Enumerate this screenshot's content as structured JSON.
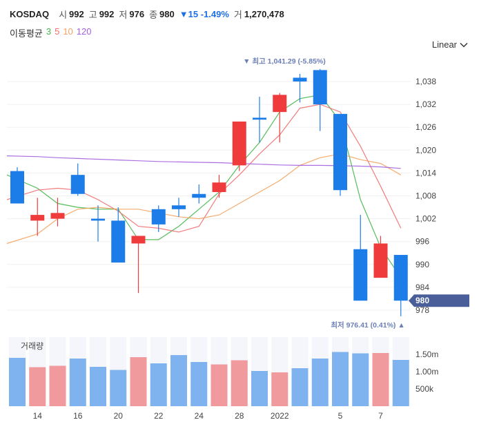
{
  "header": {
    "symbol": "KOSDAQ",
    "open_label": "시",
    "open_value": "992",
    "high_label": "고",
    "high_value": "992",
    "low_label": "저",
    "low_value": "976",
    "close_label": "종",
    "close_value": "980",
    "change_text": "▼15 -1.49%",
    "volume_label": "거",
    "volume_value": "1,270,478"
  },
  "moving_average": {
    "label": "이동평균",
    "periods": [
      {
        "text": "3",
        "color": "#43b649"
      },
      {
        "text": "5",
        "color": "#f06e6e"
      },
      {
        "text": "10",
        "color": "#f5a25d"
      },
      {
        "text": "120",
        "color": "#a25ee0"
      }
    ]
  },
  "scale_selector": {
    "label": "Linear",
    "icon": "chevron-down-icon"
  },
  "colors": {
    "up": "#ef3b3b",
    "down": "#1c7de8",
    "vol_up": "#f09a9e",
    "vol_down": "#7fb3ef",
    "price_tag": "#4a5f9a",
    "marker": "#6c7fb6"
  },
  "annotations": {
    "high": "▼ 최고 1,041.29 (-5.85%)",
    "low": "최저 976.41 (0.41%) ▲",
    "current_price": "980"
  },
  "volume_panel": {
    "label": "거래량"
  },
  "chart_data": {
    "type": "candlestick",
    "x_tick_labels": [
      "14",
      "16",
      "20",
      "22",
      "24",
      "28",
      "2022",
      "5",
      "7"
    ],
    "y_ticks": [
      978,
      984,
      990,
      996,
      1002,
      1008,
      1014,
      1020,
      1026,
      1032,
      1038
    ],
    "ylim": [
      975.5,
      1041.5
    ],
    "candles": [
      {
        "o": 1014.5,
        "h": 1015.5,
        "l": 1006,
        "c": 1006
      },
      {
        "o": 1001.5,
        "h": 1007.5,
        "l": 997.5,
        "c": 1003
      },
      {
        "o": 1002,
        "h": 1007.5,
        "l": 1000,
        "c": 1003.5
      },
      {
        "o": 1013.5,
        "h": 1016.5,
        "l": 1008,
        "c": 1008.5
      },
      {
        "o": 1002,
        "h": 1005.5,
        "l": 996,
        "c": 1001.5
      },
      {
        "o": 1001.5,
        "h": 1005,
        "l": 990.5,
        "c": 990.5
      },
      {
        "o": 995.5,
        "h": 997.5,
        "l": 982.5,
        "c": 997.5
      },
      {
        "o": 1004.5,
        "h": 1005.5,
        "l": 998.5,
        "c": 1000.5
      },
      {
        "o": 1005.5,
        "h": 1007.5,
        "l": 1002.5,
        "c": 1004.5
      },
      {
        "o": 1008.5,
        "h": 1011,
        "l": 1006,
        "c": 1007.5
      },
      {
        "o": 1009,
        "h": 1013.5,
        "l": 1007.5,
        "c": 1011.5
      },
      {
        "o": 1016,
        "h": 1027.5,
        "l": 1014.5,
        "c": 1027.5
      },
      {
        "o": 1028.5,
        "h": 1034,
        "l": 1022,
        "c": 1028
      },
      {
        "o": 1030,
        "h": 1035,
        "l": 1022,
        "c": 1034.5
      },
      {
        "o": 1039,
        "h": 1040,
        "l": 1032.5,
        "c": 1038
      },
      {
        "o": 1041,
        "h": 1041.3,
        "l": 1025,
        "c": 1032
      },
      {
        "o": 1029.5,
        "h": 1029.5,
        "l": 1008,
        "c": 1009.5
      },
      {
        "o": 994,
        "h": 1003,
        "l": 980.5,
        "c": 980.5
      },
      {
        "o": 986.5,
        "h": 997.5,
        "l": 986.5,
        "c": 995.5
      },
      {
        "o": 992.5,
        "h": 992.5,
        "l": 976.4,
        "c": 980.5
      }
    ],
    "ma": [
      {
        "period": "3",
        "color": "#43b649",
        "values": [
          1013.5,
          1010,
          1006,
          1005,
          1004.5,
          1004.5,
          996.5,
          996.5,
          1000,
          1004.5,
          1009,
          1016,
          1022,
          1030,
          1033.5,
          1034.5,
          1027.5,
          1007,
          994.5,
          986.5
        ]
      },
      {
        "period": "5",
        "color": "#f06e6e",
        "values": [
          1007,
          1009.5,
          1010,
          1009.5,
          1007,
          1004,
          1000,
          999.5,
          998.5,
          1000,
          1008.5,
          1013.5,
          1019,
          1024,
          1031,
          1032,
          1030,
          1021,
          1010.5,
          999.5
        ]
      },
      {
        "period": "10",
        "color": "#f5a25d",
        "values": [
          995.5,
          998,
          1002,
          1004.5,
          1005,
          1004.5,
          1004.5,
          1003.5,
          1002.5,
          1002,
          1003,
          1006,
          1009,
          1012,
          1016,
          1018,
          1019,
          1017.5,
          1016.5,
          1013.5
        ]
      },
      {
        "period": "120",
        "color": "#a25ee0",
        "values": [
          1018.5,
          1018.3,
          1018,
          1017.8,
          1017.6,
          1017.4,
          1017.2,
          1017,
          1016.9,
          1016.8,
          1016.7,
          1016.5,
          1016.3,
          1016.1,
          1016,
          1016,
          1015.9,
          1015.8,
          1015.6,
          1015.2
        ]
      }
    ],
    "volume": {
      "ticks": [
        "1.50m",
        "1.00m",
        "500k"
      ],
      "tick_values": [
        1500000,
        1000000,
        500000
      ],
      "max": 2000000,
      "values": [
        1400000,
        1130000,
        1170000,
        1380000,
        1140000,
        1050000,
        1420000,
        1240000,
        1480000,
        1280000,
        1210000,
        1330000,
        1020000,
        980000,
        1100000,
        1380000,
        1570000,
        1530000,
        1540000,
        1340000
      ]
    }
  }
}
